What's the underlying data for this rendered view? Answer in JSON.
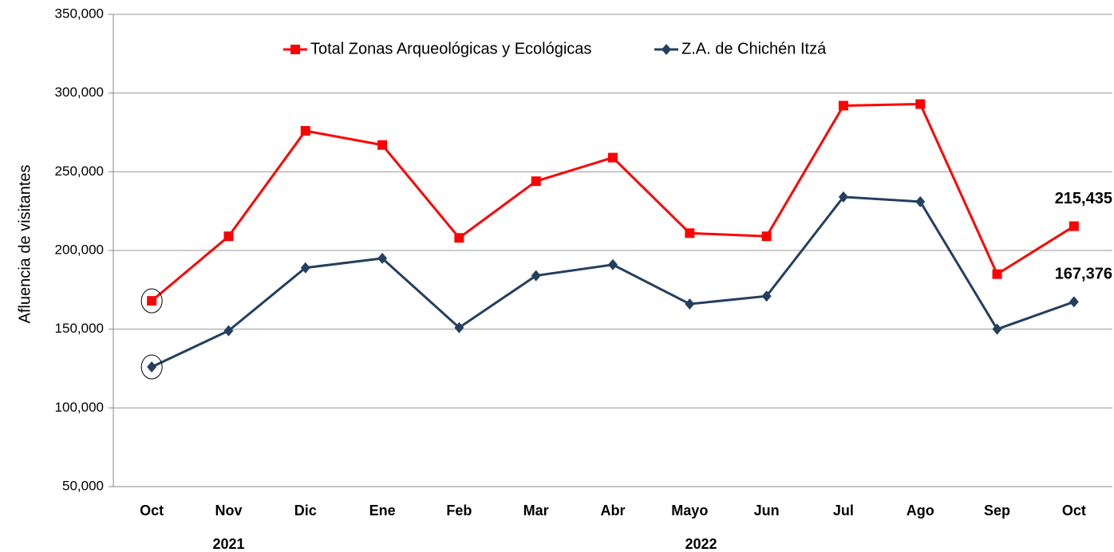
{
  "chart_data": {
    "type": "line",
    "y_label": "Afluencia de visitantes",
    "categories": [
      "Oct",
      "Nov",
      "Dic",
      "Ene",
      "Feb",
      "Mar",
      "Abr",
      "Mayo",
      "Jun",
      "Jul",
      "Ago",
      "Sep",
      "Oct"
    ],
    "years": [
      "2021",
      "2022"
    ],
    "series": [
      {
        "name": "Total Zonas Arqueológicas y Ecológicas",
        "color": "#ff0000",
        "marker": "square",
        "values": [
          168000,
          209000,
          276000,
          267000,
          208000,
          244000,
          259000,
          211000,
          209000,
          292000,
          293000,
          185000,
          215435
        ],
        "value_labels": [
          null,
          null,
          null,
          null,
          null,
          null,
          null,
          null,
          null,
          null,
          null,
          null,
          "215,435"
        ]
      },
      {
        "name": "Z.A. de Chichén Itzá",
        "color": "#243f60",
        "marker": "diamond",
        "values": [
          126000,
          149000,
          189000,
          195000,
          151000,
          184000,
          191000,
          166000,
          171000,
          234000,
          231000,
          150000,
          167376
        ],
        "value_labels": [
          null,
          null,
          null,
          null,
          null,
          null,
          null,
          null,
          null,
          null,
          null,
          null,
          "167,376"
        ]
      }
    ],
    "ylim": [
      50000,
      350000
    ],
    "yticks": [
      {
        "value": 50000,
        "label": "50,000"
      },
      {
        "value": 100000,
        "label": "100,000"
      },
      {
        "value": 150000,
        "label": "150,000"
      },
      {
        "value": 200000,
        "label": "200,000"
      },
      {
        "value": 250000,
        "label": "250,000"
      },
      {
        "value": 300000,
        "label": "300,000"
      },
      {
        "value": 350000,
        "label": "350,000"
      }
    ],
    "grid": true
  }
}
